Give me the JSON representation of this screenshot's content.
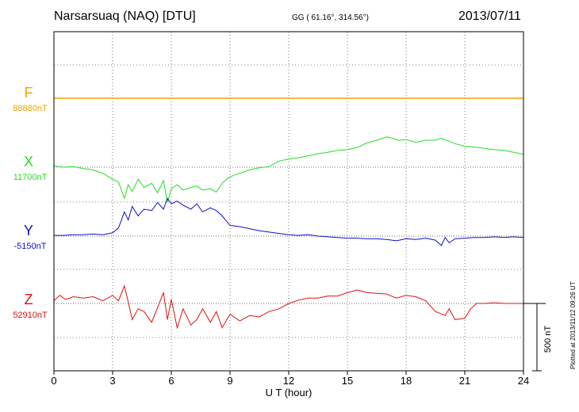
{
  "header": {
    "station": "Narsarsuaq (NAQ)  [DTU]",
    "coords": "GG ( 61.16°, 314.56°)",
    "date": "2013/07/11"
  },
  "plotted_note": "Plotted at 2013/11/12 09:26 UT",
  "components": [
    {
      "label": "F",
      "baseline": "88880nT",
      "color": "#f5a400"
    },
    {
      "label": "X",
      "baseline": "11700nT",
      "color": "#22dd22"
    },
    {
      "label": "Y",
      "baseline": "-5150nT",
      "color": "#1010cc"
    },
    {
      "label": "Z",
      "baseline": "52910nT",
      "color": "#e01010"
    }
  ],
  "chart_data": {
    "type": "line",
    "xlabel": "U T (hour)",
    "xlim": [
      0,
      24
    ],
    "xticks": [
      0,
      3,
      6,
      9,
      12,
      15,
      18,
      21,
      24
    ],
    "scale_bar": "500 nT",
    "grid": true,
    "series": [
      {
        "name": "F",
        "color": "#f5a400",
        "x": [
          0,
          24
        ],
        "y": [
          0,
          0
        ]
      },
      {
        "name": "X",
        "color": "#22dd22",
        "x": [
          0,
          0.5,
          1,
          1.5,
          2,
          2.5,
          3,
          3.3,
          3.6,
          3.8,
          4,
          4.3,
          4.6,
          5,
          5.3,
          5.6,
          5.8,
          6,
          6.3,
          6.6,
          7,
          7.3,
          7.6,
          8,
          8.3,
          8.6,
          8.9,
          9.2,
          9.6,
          10,
          10.5,
          11,
          11.5,
          12,
          12.5,
          13,
          13.5,
          14,
          14.5,
          15,
          15.5,
          16,
          16.5,
          17,
          17.3,
          17.6,
          18,
          18.5,
          19,
          19.5,
          19.8,
          20,
          20.5,
          21,
          21.5,
          22,
          22.5,
          23,
          23.5,
          24
        ],
        "y": [
          10,
          0,
          5,
          -10,
          -20,
          -45,
          -90,
          -110,
          -230,
          -130,
          -180,
          -90,
          -150,
          -120,
          -190,
          -100,
          -260,
          -160,
          -130,
          -170,
          -150,
          -140,
          -170,
          -160,
          -185,
          -120,
          -80,
          -60,
          -40,
          -20,
          -5,
          5,
          45,
          60,
          70,
          85,
          100,
          110,
          125,
          130,
          145,
          180,
          200,
          225,
          215,
          200,
          205,
          185,
          200,
          200,
          215,
          205,
          175,
          155,
          150,
          140,
          130,
          125,
          110,
          95
        ]
      },
      {
        "name": "Y",
        "color": "#1010cc",
        "x": [
          0,
          0.5,
          1,
          1.5,
          2,
          2.5,
          3,
          3.3,
          3.6,
          3.8,
          4,
          4.3,
          4.6,
          5,
          5.3,
          5.6,
          5.8,
          6,
          6.3,
          6.6,
          7,
          7.3,
          7.6,
          8,
          8.3,
          8.6,
          9,
          9.5,
          10,
          10.5,
          11,
          11.5,
          12,
          12.5,
          13,
          13.5,
          14,
          14.5,
          15,
          15.5,
          16,
          16.5,
          17,
          17.5,
          18,
          18.5,
          19,
          19.5,
          19.8,
          20,
          20.2,
          20.5,
          21,
          21.5,
          22,
          22.5,
          23,
          23.5,
          24
        ],
        "y": [
          5,
          5,
          10,
          10,
          15,
          10,
          25,
          60,
          180,
          120,
          220,
          150,
          200,
          190,
          250,
          200,
          280,
          240,
          260,
          230,
          200,
          240,
          180,
          210,
          190,
          150,
          80,
          70,
          55,
          40,
          30,
          20,
          10,
          5,
          10,
          0,
          -5,
          -10,
          -15,
          -15,
          -20,
          -20,
          -25,
          -35,
          -20,
          -25,
          -15,
          -30,
          -70,
          -10,
          -50,
          -20,
          -15,
          -10,
          -10,
          -5,
          -10,
          -5,
          -10
        ]
      },
      {
        "name": "Z",
        "color": "#e01010",
        "x": [
          0,
          0.3,
          0.6,
          1,
          1.5,
          2,
          2.5,
          3,
          3.3,
          3.6,
          3.8,
          4,
          4.3,
          4.6,
          5,
          5.3,
          5.6,
          5.8,
          6,
          6.3,
          6.6,
          7,
          7.3,
          7.6,
          8,
          8.3,
          8.6,
          9,
          9.5,
          10,
          10.5,
          11,
          11.5,
          12,
          12.5,
          13,
          13.5,
          14,
          14.5,
          15,
          15.5,
          16,
          16.5,
          17,
          17.5,
          18,
          18.5,
          19,
          19.5,
          20,
          20.2,
          20.5,
          21,
          21.3,
          21.6,
          22,
          22.5,
          23,
          23.5,
          24
        ],
        "y": [
          20,
          60,
          30,
          50,
          40,
          50,
          20,
          60,
          20,
          130,
          10,
          -120,
          -40,
          -60,
          -140,
          -30,
          80,
          -120,
          30,
          -180,
          -40,
          -160,
          -120,
          -40,
          -140,
          -60,
          -180,
          -80,
          -130,
          -90,
          -100,
          -60,
          -40,
          0,
          25,
          40,
          40,
          55,
          55,
          80,
          100,
          80,
          75,
          70,
          40,
          60,
          50,
          20,
          -60,
          -90,
          -40,
          -120,
          -110,
          -40,
          0,
          0,
          5,
          0,
          0,
          0
        ]
      }
    ]
  }
}
